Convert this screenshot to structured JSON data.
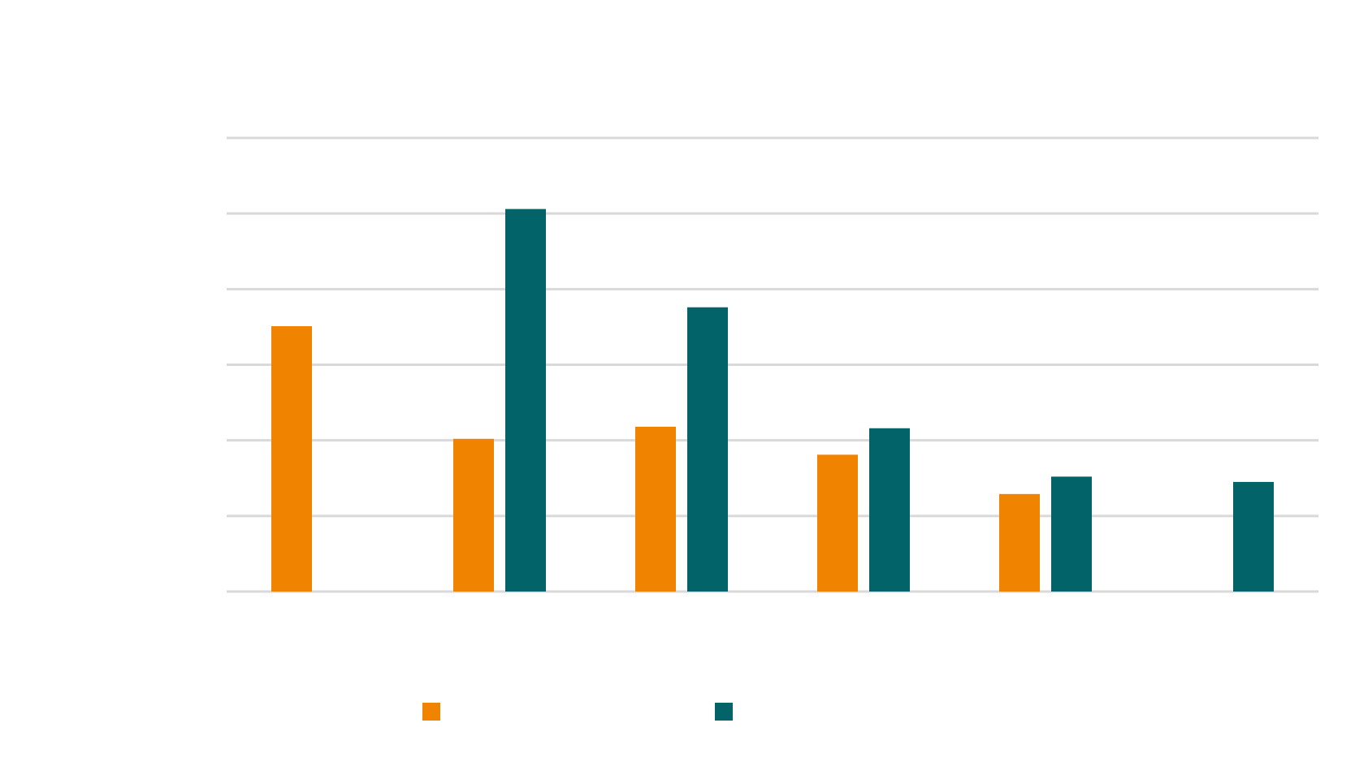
{
  "chart_data": {
    "type": "bar",
    "title": "",
    "xlabel": "",
    "ylabel": "",
    "ylim": [
      0,
      6
    ],
    "gridlines": 6,
    "grid": true,
    "legend_position": "bottom",
    "categories": [
      "",
      "",
      "",
      "",
      "",
      ""
    ],
    "series": [
      {
        "name": "",
        "color": "#f08300",
        "values": [
          3.51,
          2.02,
          2.18,
          1.81,
          1.29,
          null
        ]
      },
      {
        "name": "",
        "color": "#026368",
        "values": [
          null,
          5.06,
          3.76,
          2.16,
          1.52,
          1.45
        ]
      }
    ]
  }
}
